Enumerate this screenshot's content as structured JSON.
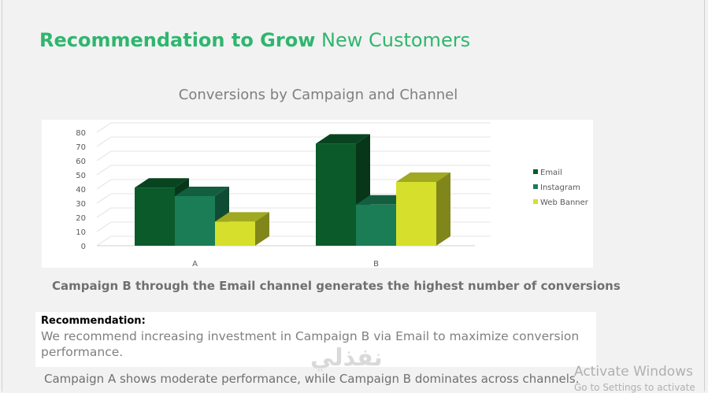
{
  "slide": {
    "title_bold": "Recommendation to Grow",
    "title_rest": "New Customers",
    "insight": "Campaign B through the Email channel generates the highest number of conversions",
    "recommendation_heading": "Recommendation:",
    "recommendation_text": "We recommend increasing investment in Campaign B via Email to maximize conversion performance.",
    "footer": "Campaign A shows moderate performance, while Campaign B dominates across channels.",
    "watermark": "نفذلي",
    "os_activate": "Activate Windows",
    "os_activate_sub": "Go to Settings to activate"
  },
  "chart_data": {
    "type": "bar",
    "title": "Conversions by Campaign and Channel",
    "categories": [
      "A",
      "B"
    ],
    "series": [
      {
        "name": "Email",
        "values": [
          41,
          72
        ],
        "color": "#0b5a2a"
      },
      {
        "name": "Instagram",
        "values": [
          35,
          29
        ],
        "color": "#1a7d55"
      },
      {
        "name": "Web Banner",
        "values": [
          17,
          45
        ],
        "color": "#d6e02c"
      }
    ],
    "yticks": [
      0,
      10,
      20,
      30,
      40,
      50,
      60,
      70,
      80
    ],
    "ylim": [
      0,
      80
    ],
    "legend": "right",
    "grid": true,
    "style": "3d-clustered-column"
  }
}
